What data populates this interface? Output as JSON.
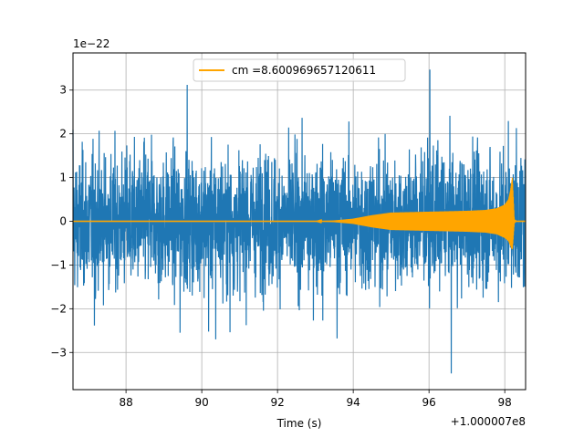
{
  "chart_data": {
    "type": "line",
    "title": "",
    "xlabel": "Time (s)",
    "ylabel": "",
    "x_offset_label": "+1.000007e8",
    "y_scale_label": "1e−22",
    "xlim": [
      86.6,
      98.55
    ],
    "ylim": [
      -3.85,
      3.85
    ],
    "xticks": [
      88,
      90,
      92,
      94,
      96,
      98
    ],
    "yticks": [
      -3,
      -2,
      -1,
      0,
      1,
      2,
      3
    ],
    "x_tick_labels": [
      "88",
      "90",
      "92",
      "94",
      "96",
      "98"
    ],
    "y_tick_labels": [
      "−3",
      "−2",
      "−1",
      "0",
      "1",
      "2",
      "3"
    ],
    "grid": true,
    "legend": {
      "placement": "top-center",
      "entries": [
        "cm =8.600969657120611"
      ]
    },
    "series": [
      {
        "kind": "noise",
        "color": "#1f77b4",
        "x_range": [
          86.6,
          98.55
        ],
        "typical_amplitude": [
          -1.9,
          2.2
        ],
        "max": 3.47,
        "min": -3.48
      },
      {
        "name": "cm =8.600969657120611",
        "kind": "chirp",
        "color": "#ffa500",
        "envelope": {
          "x": [
            86.6,
            93.0,
            93.5,
            94.0,
            94.5,
            95.0,
            95.5,
            96.0,
            96.5,
            97.0,
            97.5,
            97.8,
            98.0,
            98.1,
            98.15,
            98.2,
            98.25,
            98.3,
            98.55
          ],
          "upper": [
            0.0,
            0.0,
            0.02,
            0.06,
            0.14,
            0.2,
            0.21,
            0.22,
            0.23,
            0.24,
            0.26,
            0.3,
            0.38,
            0.5,
            0.7,
            1.0,
            0.05,
            0.0,
            0.0
          ],
          "lower": [
            0.0,
            0.0,
            -0.02,
            -0.06,
            -0.14,
            -0.2,
            -0.21,
            -0.22,
            -0.23,
            -0.24,
            -0.26,
            -0.3,
            -0.38,
            -0.45,
            -0.55,
            -0.65,
            -0.05,
            0.0,
            0.0
          ]
        }
      }
    ]
  }
}
